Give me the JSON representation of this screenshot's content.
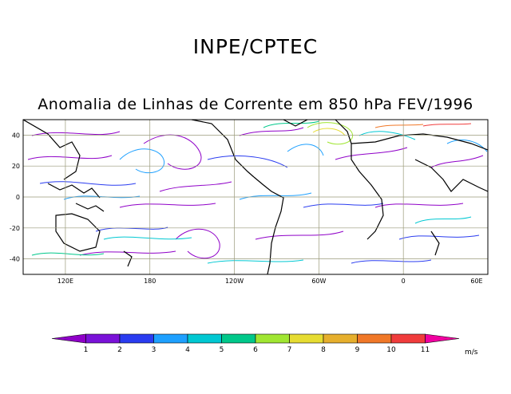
{
  "header": {
    "agency": "INPE/CPTEC",
    "subtitle": "Anomalia de Linhas de Corrente em 850 hPa FEV/1996"
  },
  "map": {
    "lon_range": [
      90,
      420
    ],
    "lat_range": [
      -50,
      50
    ],
    "lon_ticks": [
      {
        "value": 120,
        "label": "120E"
      },
      {
        "value": 180,
        "label": "180"
      },
      {
        "value": 240,
        "label": "120W"
      },
      {
        "value": 300,
        "label": "60W"
      },
      {
        "value": 360,
        "label": "0"
      },
      {
        "value": 420,
        "label": "60E"
      }
    ],
    "lat_ticks": [
      {
        "value": 40,
        "label": "40"
      },
      {
        "value": 20,
        "label": "20"
      },
      {
        "value": 0,
        "label": "0"
      },
      {
        "value": -20,
        "label": "-20"
      },
      {
        "value": -40,
        "label": "-40"
      }
    ],
    "grid": true
  },
  "colorbar": {
    "labels": [
      "1",
      "2",
      "3",
      "4",
      "5",
      "6",
      "7",
      "8",
      "9",
      "10",
      "11"
    ],
    "colors": [
      "#8f00c8",
      "#7a12d8",
      "#2a3cf0",
      "#1ea0ff",
      "#00c8d2",
      "#00c88a",
      "#a0e632",
      "#e6dc32",
      "#e6af2d",
      "#f07828",
      "#f03c3c",
      "#f000a0"
    ],
    "unit": "m/s"
  }
}
